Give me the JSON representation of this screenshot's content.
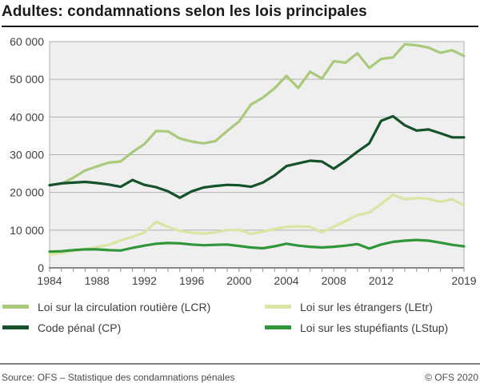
{
  "header": {
    "title": "Adultes: condamnations selon les lois principales"
  },
  "footer": {
    "source": "Source: OFS – Statistique des condamnations pénales",
    "copyright": "© OFS 2020"
  },
  "colors": {
    "plot_bg": "#efefef",
    "grid": "#b0b0b0",
    "axis": "#8a8a8a",
    "tick_text": "#404040",
    "lcr": "#a8ca7a",
    "cp": "#15522b",
    "letr": "#dbe5a3",
    "lstup": "#2f9639"
  },
  "chart_data": {
    "type": "line",
    "title": "Adultes: condamnations selon les lois principales",
    "xlabel": "",
    "ylabel": "",
    "xlim": [
      1984,
      2019
    ],
    "ylim": [
      0,
      60000
    ],
    "grid": true,
    "legend_position": "bottom",
    "x_tick_years": [
      1984,
      1988,
      1992,
      1996,
      2000,
      2004,
      2008,
      2012,
      2019
    ],
    "y_ticks": [
      0,
      10000,
      20000,
      30000,
      40000,
      50000,
      60000
    ],
    "y_tick_labels": [
      "0",
      "10 000",
      "20 000",
      "30 000",
      "40 000",
      "50 000",
      "60 000"
    ],
    "x": [
      1984,
      1985,
      1986,
      1987,
      1988,
      1989,
      1990,
      1991,
      1992,
      1993,
      1994,
      1995,
      1996,
      1997,
      1998,
      1999,
      2000,
      2001,
      2002,
      2003,
      2004,
      2005,
      2006,
      2007,
      2008,
      2009,
      2010,
      2011,
      2012,
      2013,
      2014,
      2015,
      2016,
      2017,
      2018,
      2019
    ],
    "series": [
      {
        "name": "Loi sur la circulation routière (LCR)",
        "abbr": "LCR",
        "color_key": "lcr",
        "values": [
          22000,
          22300,
          23900,
          25800,
          26900,
          27900,
          28200,
          30700,
          32800,
          36300,
          36200,
          34300,
          33500,
          33000,
          33600,
          36300,
          38800,
          43300,
          45100,
          47600,
          50900,
          47700,
          52000,
          50200,
          54800,
          54400,
          56900,
          53000,
          55400,
          55800,
          59300,
          59000,
          58400,
          57000,
          57700,
          56200
        ]
      },
      {
        "name": "Code pénal (CP)",
        "abbr": "CP",
        "color_key": "cp",
        "values": [
          21900,
          22400,
          22600,
          22800,
          22500,
          22100,
          21500,
          23300,
          22000,
          21400,
          20300,
          18600,
          20300,
          21300,
          21700,
          22000,
          21900,
          21500,
          22600,
          24500,
          27000,
          27700,
          28400,
          28200,
          26300,
          28400,
          30800,
          33000,
          39000,
          40200,
          37800,
          36400,
          36700,
          35700,
          34600,
          34600
        ]
      },
      {
        "name": "Loi sur les étrangers (LEtr)",
        "abbr": "LEtr",
        "color_key": "letr",
        "values": [
          3500,
          3900,
          4500,
          5000,
          5500,
          6100,
          7300,
          8200,
          9400,
          12200,
          10900,
          9800,
          9300,
          9100,
          9400,
          10000,
          10100,
          9000,
          9600,
          10300,
          10900,
          11000,
          10900,
          9400,
          10900,
          12400,
          14000,
          14700,
          16900,
          19400,
          18200,
          18500,
          18300,
          17500,
          18200,
          16600
        ]
      },
      {
        "name": "Loi sur les stupéfiants (LStup)",
        "abbr": "LStup",
        "color_key": "lstup",
        "values": [
          4300,
          4400,
          4700,
          4900,
          4900,
          4700,
          4600,
          5300,
          5900,
          6400,
          6600,
          6500,
          6200,
          6000,
          6100,
          6200,
          5800,
          5400,
          5200,
          5700,
          6400,
          5900,
          5600,
          5400,
          5600,
          5900,
          6300,
          5100,
          6200,
          6900,
          7200,
          7400,
          7200,
          6700,
          6100,
          5700
        ]
      }
    ],
    "legend_display_order": [
      0,
      2,
      1,
      3
    ]
  }
}
